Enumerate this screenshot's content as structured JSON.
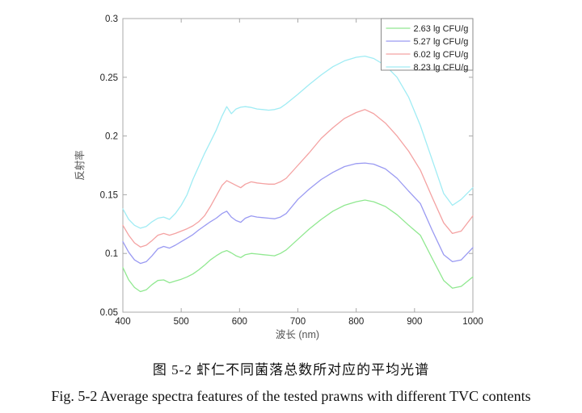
{
  "figure": {
    "caption_zh": "图 5-2  虾仁不同菌落总数所对应的平均光谱",
    "caption_en": "Fig. 5-2 Average spectra features of the tested prawns with different TVC contents"
  },
  "chart_data": {
    "type": "line",
    "title": "",
    "xlabel": "波长  (nm)",
    "ylabel": "反射率",
    "xlim": [
      400,
      1000
    ],
    "ylim": [
      0.05,
      0.3
    ],
    "xticks": [
      400,
      500,
      600,
      700,
      800,
      900,
      1000
    ],
    "xtick_labels": [
      "400",
      "500",
      "600",
      "700",
      "800",
      "900",
      "1000"
    ],
    "yticks": [
      0.05,
      0.1,
      0.15,
      0.2,
      0.25,
      0.3
    ],
    "ytick_labels": [
      "0.05",
      "0.1",
      "0.15",
      "0.2",
      "0.25",
      "0.3"
    ],
    "grid": false,
    "legend_position": "top-right-inside",
    "axis_color": "#a8a8a8",
    "tick_label_color": "#222222",
    "axis_label_color": "#555555",
    "x": [
      400,
      410,
      420,
      430,
      440,
      450,
      460,
      470,
      480,
      490,
      500,
      510,
      520,
      530,
      540,
      550,
      560,
      570,
      578,
      586,
      594,
      602,
      610,
      620,
      630,
      640,
      650,
      660,
      670,
      680,
      700,
      720,
      740,
      760,
      780,
      800,
      815,
      830,
      850,
      870,
      890,
      910,
      930,
      950,
      965,
      980,
      1000
    ],
    "series": [
      {
        "name": "2.63 lg CFU/g",
        "color": "#90e890",
        "values": [
          0.088,
          0.0775,
          0.071,
          0.0675,
          0.069,
          0.0735,
          0.077,
          0.0775,
          0.075,
          0.0765,
          0.078,
          0.08,
          0.0825,
          0.086,
          0.09,
          0.0945,
          0.098,
          0.101,
          0.1025,
          0.1005,
          0.098,
          0.0965,
          0.099,
          0.1,
          0.0995,
          0.099,
          0.0985,
          0.098,
          0.1,
          0.103,
          0.112,
          0.121,
          0.129,
          0.136,
          0.141,
          0.144,
          0.1455,
          0.144,
          0.14,
          0.133,
          0.124,
          0.1155,
          0.096,
          0.077,
          0.0705,
          0.072,
          0.08
        ]
      },
      {
        "name": "5.27 lg CFU/g",
        "color": "#9a9af2",
        "values": [
          0.11,
          0.101,
          0.0945,
          0.0915,
          0.093,
          0.098,
          0.104,
          0.106,
          0.1045,
          0.107,
          0.11,
          0.113,
          0.116,
          0.12,
          0.1235,
          0.127,
          0.13,
          0.134,
          0.136,
          0.131,
          0.128,
          0.1265,
          0.13,
          0.132,
          0.131,
          0.1305,
          0.13,
          0.1295,
          0.131,
          0.134,
          0.146,
          0.155,
          0.163,
          0.169,
          0.174,
          0.1765,
          0.177,
          0.176,
          0.172,
          0.164,
          0.153,
          0.1425,
          0.12,
          0.099,
          0.093,
          0.0945,
          0.105
        ]
      },
      {
        "name": "6.02 lg CFU/g",
        "color": "#f4a2a2",
        "values": [
          0.124,
          0.1155,
          0.109,
          0.1055,
          0.107,
          0.111,
          0.1155,
          0.117,
          0.1155,
          0.117,
          0.119,
          0.121,
          0.1235,
          0.127,
          0.132,
          0.14,
          0.149,
          0.158,
          0.162,
          0.16,
          0.158,
          0.156,
          0.159,
          0.161,
          0.16,
          0.1595,
          0.159,
          0.159,
          0.161,
          0.164,
          0.175,
          0.186,
          0.198,
          0.207,
          0.215,
          0.22,
          0.2225,
          0.219,
          0.211,
          0.2,
          0.187,
          0.171,
          0.148,
          0.126,
          0.117,
          0.119,
          0.132
        ]
      },
      {
        "name": "8.23 lg CFU/g",
        "color": "#a0ecf4",
        "values": [
          0.138,
          0.129,
          0.124,
          0.1215,
          0.123,
          0.127,
          0.13,
          0.131,
          0.129,
          0.134,
          0.141,
          0.15,
          0.163,
          0.174,
          0.185,
          0.195,
          0.205,
          0.217,
          0.225,
          0.219,
          0.223,
          0.2245,
          0.225,
          0.2243,
          0.223,
          0.2225,
          0.222,
          0.2225,
          0.224,
          0.2275,
          0.2355,
          0.244,
          0.252,
          0.259,
          0.264,
          0.267,
          0.268,
          0.266,
          0.26,
          0.25,
          0.233,
          0.209,
          0.18,
          0.151,
          0.141,
          0.146,
          0.156
        ]
      }
    ]
  }
}
